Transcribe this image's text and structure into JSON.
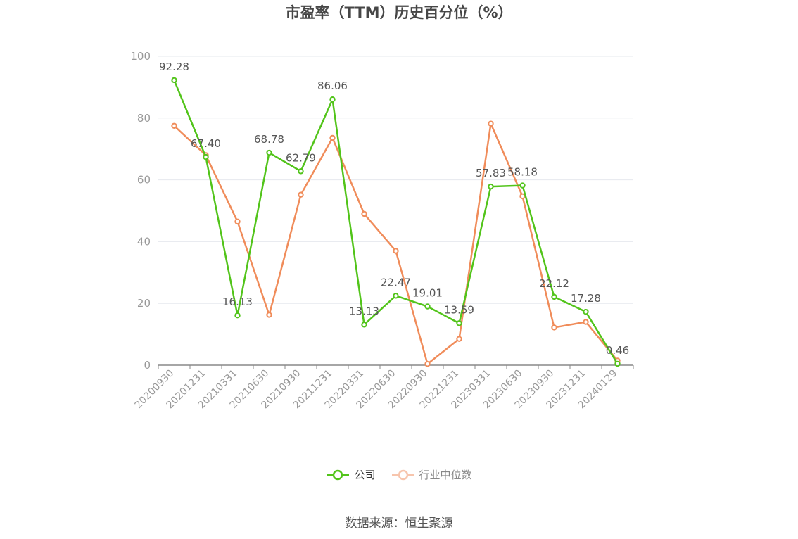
{
  "title": "市盈率（TTM）历史百分位（%）",
  "source": "数据来源：恒生聚源",
  "chart_data": {
    "type": "line",
    "categories": [
      "20200930",
      "20201231",
      "20210331",
      "20210630",
      "20210930",
      "20211231",
      "20220331",
      "20220630",
      "20220930",
      "20221231",
      "20230331",
      "20230630",
      "20230930",
      "20231231",
      "20240129"
    ],
    "ylim": [
      0,
      100
    ],
    "yticks": [
      0,
      20,
      40,
      60,
      80,
      100
    ],
    "grid": true,
    "legend_position": "bottom",
    "series": [
      {
        "name": "公司",
        "color": "#52c41a",
        "show_labels": true,
        "values": [
          92.28,
          67.4,
          16.13,
          68.78,
          62.79,
          86.06,
          13.13,
          22.47,
          19.01,
          13.59,
          57.83,
          58.18,
          22.12,
          17.28,
          0.46
        ],
        "labels": [
          "92.28",
          "67.40",
          "16.13",
          "68.78",
          "62.79",
          "86.06",
          "13.13",
          "22.47",
          "19.01",
          "13.59",
          "57.83",
          "58.18",
          "22.12",
          "17.28",
          "0.46"
        ]
      },
      {
        "name": "行业中位数",
        "color": "#f08c5a",
        "show_labels": false,
        "values": [
          77.5,
          68.0,
          46.5,
          16.3,
          55.2,
          73.6,
          49.0,
          37.0,
          0.4,
          8.5,
          78.2,
          54.7,
          12.2,
          14.0,
          1.5
        ]
      }
    ]
  }
}
